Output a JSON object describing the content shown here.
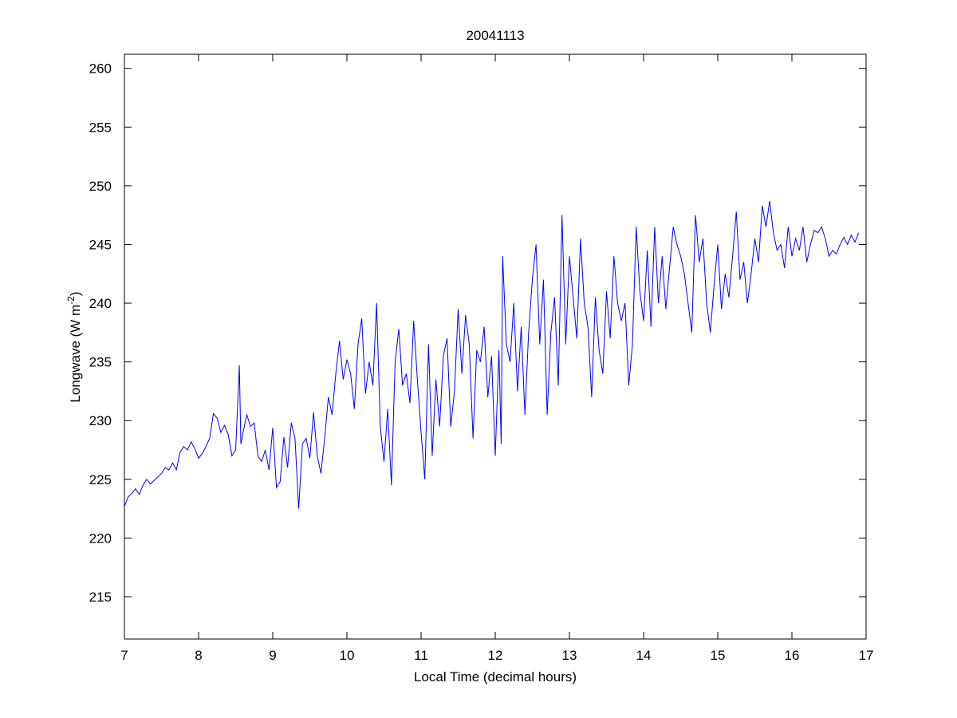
{
  "chart_data": {
    "type": "line",
    "title": "20041113",
    "xlabel": "Local Time (decimal hours)",
    "ylabel": {
      "text": "Longwave (W m",
      "superscript": "-2",
      "suffix": ")"
    },
    "color": "#0000ff",
    "xlim": [
      7,
      17
    ],
    "xticks": [
      7,
      8,
      9,
      10,
      11,
      12,
      13,
      14,
      15,
      16,
      17
    ],
    "ylim": [
      211.4,
      261.2
    ],
    "yticks": [
      215,
      220,
      225,
      230,
      235,
      240,
      245,
      250,
      255,
      260
    ],
    "x": [
      7.0,
      7.05,
      7.1,
      7.15,
      7.2,
      7.25,
      7.3,
      7.35,
      7.4,
      7.5,
      7.55,
      7.6,
      7.65,
      7.7,
      7.75,
      7.8,
      7.85,
      7.9,
      7.95,
      8.0,
      8.05,
      8.1,
      8.15,
      8.2,
      8.25,
      8.3,
      8.35,
      8.4,
      8.45,
      8.5,
      8.55,
      8.57,
      8.6,
      8.65,
      8.7,
      8.75,
      8.8,
      8.85,
      8.9,
      8.95,
      9.0,
      9.05,
      9.1,
      9.15,
      9.2,
      9.25,
      9.3,
      9.35,
      9.4,
      9.45,
      9.5,
      9.55,
      9.6,
      9.65,
      9.7,
      9.75,
      9.8,
      9.85,
      9.9,
      9.95,
      10.0,
      10.05,
      10.1,
      10.15,
      10.2,
      10.25,
      10.3,
      10.35,
      10.4,
      10.45,
      10.5,
      10.55,
      10.6,
      10.65,
      10.7,
      10.75,
      10.8,
      10.85,
      10.9,
      10.95,
      11.0,
      11.05,
      11.1,
      11.15,
      11.2,
      11.25,
      11.3,
      11.35,
      11.4,
      11.45,
      11.5,
      11.55,
      11.6,
      11.65,
      11.7,
      11.75,
      11.8,
      11.85,
      11.9,
      11.95,
      12.0,
      12.05,
      12.08,
      12.1,
      12.15,
      12.2,
      12.25,
      12.3,
      12.35,
      12.4,
      12.45,
      12.5,
      12.55,
      12.6,
      12.65,
      12.7,
      12.75,
      12.8,
      12.85,
      12.9,
      12.95,
      13.0,
      13.05,
      13.1,
      13.15,
      13.2,
      13.25,
      13.3,
      13.35,
      13.4,
      13.45,
      13.5,
      13.55,
      13.6,
      13.65,
      13.7,
      13.75,
      13.8,
      13.85,
      13.9,
      13.95,
      14.0,
      14.05,
      14.1,
      14.15,
      14.2,
      14.25,
      14.3,
      14.35,
      14.4,
      14.45,
      14.5,
      14.55,
      14.6,
      14.65,
      14.7,
      14.75,
      14.8,
      14.85,
      14.9,
      14.95,
      15.0,
      15.05,
      15.1,
      15.15,
      15.2,
      15.25,
      15.3,
      15.35,
      15.4,
      15.45,
      15.5,
      15.55,
      15.6,
      15.65,
      15.7,
      15.75,
      15.8,
      15.85,
      15.9,
      15.95,
      16.0,
      16.05,
      16.1,
      16.15,
      16.2,
      16.25,
      16.3,
      16.35,
      16.4,
      16.45,
      16.5,
      16.55,
      16.6,
      16.65,
      16.7,
      16.75,
      16.8,
      16.85,
      16.9
    ],
    "values": [
      222.7,
      223.5,
      223.8,
      224.2,
      223.7,
      224.5,
      225.0,
      224.6,
      224.9,
      225.5,
      226.0,
      225.8,
      226.4,
      225.8,
      227.3,
      227.8,
      227.5,
      228.2,
      227.6,
      226.8,
      227.2,
      227.8,
      228.5,
      230.6,
      230.2,
      229.0,
      229.6,
      228.8,
      227.0,
      227.5,
      234.7,
      228.0,
      229.0,
      230.5,
      229.5,
      229.8,
      227.0,
      226.5,
      227.5,
      225.8,
      229.4,
      224.3,
      224.8,
      228.6,
      226.0,
      229.8,
      228.5,
      222.5,
      228.0,
      228.5,
      226.8,
      230.7,
      227.0,
      225.5,
      228.5,
      232.0,
      230.5,
      234.0,
      236.8,
      233.5,
      235.2,
      234.0,
      231.0,
      236.5,
      238.7,
      232.3,
      235.0,
      233.0,
      240.0,
      229.5,
      226.5,
      231.0,
      224.5,
      235.0,
      237.8,
      233.0,
      234.0,
      231.5,
      238.5,
      233.5,
      229.0,
      225.0,
      236.5,
      227.0,
      233.5,
      229.5,
      235.5,
      237.0,
      229.5,
      232.5,
      239.5,
      234.0,
      239.0,
      236.5,
      228.5,
      236.0,
      235.0,
      238.0,
      232.0,
      235.5,
      227.0,
      236.0,
      228.0,
      244.0,
      236.5,
      235.0,
      240.0,
      232.5,
      238.0,
      230.5,
      237.5,
      242.0,
      245.0,
      236.5,
      242.0,
      230.5,
      237.5,
      240.5,
      233.0,
      247.5,
      236.5,
      244.0,
      240.5,
      237.0,
      245.5,
      240.0,
      238.0,
      232.0,
      240.5,
      236.0,
      234.0,
      241.0,
      237.0,
      244.0,
      240.0,
      238.5,
      240.0,
      233.0,
      236.5,
      246.5,
      241.0,
      238.5,
      244.5,
      238.0,
      246.5,
      240.0,
      244.0,
      239.5,
      243.0,
      246.5,
      245.0,
      244.0,
      242.5,
      240.0,
      237.5,
      247.5,
      243.5,
      245.5,
      240.0,
      237.5,
      241.5,
      245.0,
      239.5,
      242.5,
      240.5,
      244.0,
      247.8,
      242.0,
      243.5,
      240.0,
      242.5,
      245.5,
      243.5,
      248.3,
      246.5,
      248.7,
      246.0,
      244.5,
      245.0,
      243.0,
      246.5,
      244.0,
      245.5,
      244.5,
      246.5,
      243.5,
      245.0,
      246.2,
      246.0,
      246.5,
      245.5,
      244.0,
      244.5,
      244.2,
      245.0,
      245.6,
      245.0,
      245.8,
      245.2,
      246.0
    ]
  }
}
